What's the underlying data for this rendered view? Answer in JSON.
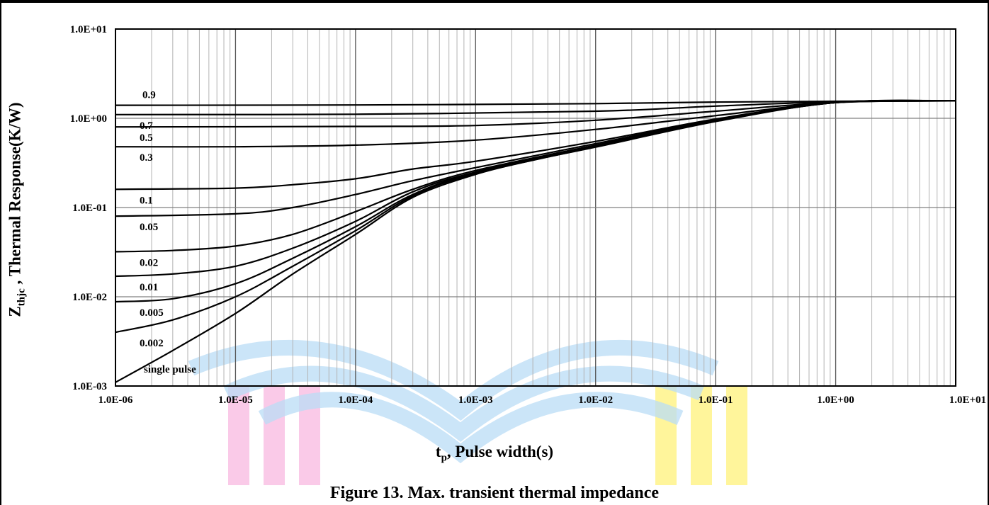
{
  "caption": "Figure 13. Max. transient thermal impedance",
  "chart_data": {
    "type": "line",
    "title": "",
    "xlabel": {
      "main": "t",
      "sub": "p",
      "rest": ", Pulse width(s)"
    },
    "ylabel": {
      "main": "Z",
      "sub": "thjc",
      "rest": " , Thermal Response(K/W)"
    },
    "x_scale": "log",
    "y_scale": "log",
    "xlim": [
      1e-06,
      10
    ],
    "ylim": [
      0.001,
      10
    ],
    "x_tick_labels": [
      "1.0E-06",
      "1.0E-05",
      "1.0E-04",
      "1.0E-03",
      "1.0E-02",
      "1.0E-01",
      "1.0E+00",
      "1.0E+01"
    ],
    "y_tick_labels": [
      "1.0E-03",
      "1.0E-02",
      "1.0E-01",
      "1.0E+00",
      "1.0E+01"
    ],
    "grid": true,
    "line_color": "#000000",
    "series": [
      {
        "name": "0.9",
        "x": [
          1e-06,
          0.0001,
          0.01,
          0.1,
          1,
          10
        ],
        "y": [
          1.4,
          1.41,
          1.46,
          1.52,
          1.55,
          1.57
        ]
      },
      {
        "name": "0.7",
        "x": [
          1e-06,
          0.0001,
          0.01,
          0.1,
          1,
          10
        ],
        "y": [
          1.1,
          1.11,
          1.2,
          1.37,
          1.53,
          1.57
        ]
      },
      {
        "name": "0.5",
        "x": [
          1e-06,
          0.0001,
          0.001,
          0.01,
          0.1,
          1,
          10
        ],
        "y": [
          0.8,
          0.81,
          0.83,
          0.95,
          1.2,
          1.51,
          1.57
        ]
      },
      {
        "name": "0.3",
        "x": [
          1e-06,
          1e-05,
          0.0001,
          0.001,
          0.01,
          0.1,
          1,
          10
        ],
        "y": [
          0.48,
          0.48,
          0.5,
          0.57,
          0.75,
          1.07,
          1.5,
          1.57
        ]
      },
      {
        "name": "0.1",
        "x": [
          1e-06,
          1e-05,
          3e-05,
          0.0001,
          0.0003,
          0.001,
          0.01,
          0.1,
          1,
          10
        ],
        "y": [
          0.16,
          0.165,
          0.18,
          0.21,
          0.27,
          0.33,
          0.55,
          0.98,
          1.5,
          1.57
        ]
      },
      {
        "name": "0.05",
        "x": [
          1e-06,
          1e-05,
          3e-05,
          0.0001,
          0.0003,
          0.001,
          0.01,
          0.1,
          1,
          10
        ],
        "y": [
          0.08,
          0.085,
          0.1,
          0.14,
          0.2,
          0.28,
          0.52,
          0.96,
          1.5,
          1.57
        ]
      },
      {
        "name": "0.02",
        "x": [
          1e-06,
          3e-06,
          1e-05,
          3e-05,
          0.0001,
          0.0003,
          0.001,
          0.01,
          0.1,
          1,
          10
        ],
        "y": [
          0.032,
          0.033,
          0.037,
          0.05,
          0.09,
          0.16,
          0.26,
          0.5,
          0.95,
          1.5,
          1.57
        ]
      },
      {
        "name": "0.01",
        "x": [
          1e-06,
          3e-06,
          1e-05,
          3e-05,
          0.0001,
          0.0003,
          0.001,
          0.01,
          0.1,
          1,
          10
        ],
        "y": [
          0.017,
          0.018,
          0.022,
          0.035,
          0.07,
          0.15,
          0.25,
          0.49,
          0.94,
          1.5,
          1.57
        ]
      },
      {
        "name": "0.005",
        "x": [
          1e-06,
          3e-06,
          1e-05,
          3e-05,
          0.0001,
          0.0003,
          0.001,
          0.01,
          0.1,
          1,
          10
        ],
        "y": [
          0.0088,
          0.0095,
          0.014,
          0.027,
          0.061,
          0.14,
          0.245,
          0.485,
          0.935,
          1.5,
          1.57
        ]
      },
      {
        "name": "0.002",
        "x": [
          1e-06,
          3e-06,
          1e-05,
          3e-05,
          0.0001,
          0.0003,
          0.001,
          0.01,
          0.1,
          1,
          10
        ],
        "y": [
          0.004,
          0.0055,
          0.01,
          0.022,
          0.055,
          0.135,
          0.24,
          0.48,
          0.93,
          1.5,
          1.57
        ]
      },
      {
        "name": "single pulse",
        "x": [
          1e-06,
          3e-06,
          1e-05,
          3e-05,
          0.0001,
          0.0003,
          0.001,
          0.003,
          0.01,
          0.1,
          1,
          10
        ],
        "y": [
          0.0011,
          0.0025,
          0.0065,
          0.018,
          0.05,
          0.13,
          0.235,
          0.34,
          0.475,
          0.92,
          1.5,
          1.57
        ]
      }
    ]
  }
}
